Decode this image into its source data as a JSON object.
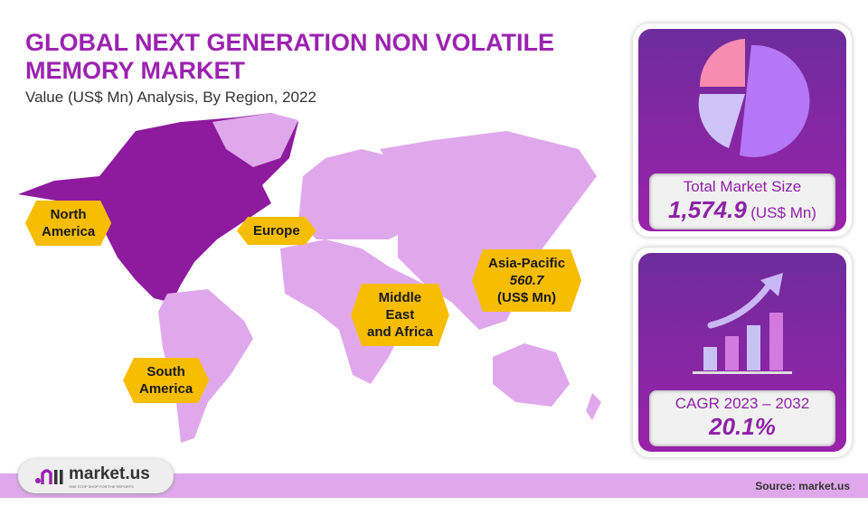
{
  "chart_data": {
    "type": "map",
    "title": "GLOBAL NEXT GENERATION NON VOLATILE MEMORY MARKET",
    "subtitle": "Value (US$ Mn) Analysis, By Region, 2022",
    "regions": [
      {
        "name": "North America",
        "highlighted": true
      },
      {
        "name": "Europe"
      },
      {
        "name": "Asia-Pacific",
        "value": "560.7",
        "unit": "(US$ Mn)"
      },
      {
        "name": "Middle East and Africa"
      },
      {
        "name": "South America"
      }
    ],
    "colors": {
      "highlight": "#8e1a9e",
      "base": "#e0a8ec",
      "label": "#f7bd00"
    }
  },
  "labels": {
    "na1": "North",
    "na2": "America",
    "eu": "Europe",
    "ap": "Asia-Pacific",
    "ap_val": "560.7",
    "ap_unit": "(US$ Mn)",
    "mea1": "Middle",
    "mea2": "East",
    "mea3": "and Africa",
    "sa1": "South",
    "sa2": "America"
  },
  "market": {
    "label": "Total Market Size",
    "value": "1,574.9",
    "unit": "(US$ Mn)"
  },
  "cagr": {
    "label": "CAGR 2023 – 2032",
    "value": "20.1%"
  },
  "logo": {
    "name": "market.us",
    "tagline": "ONE STOP SHOP FOR THE REPORTS"
  },
  "source": "Source: market.us"
}
